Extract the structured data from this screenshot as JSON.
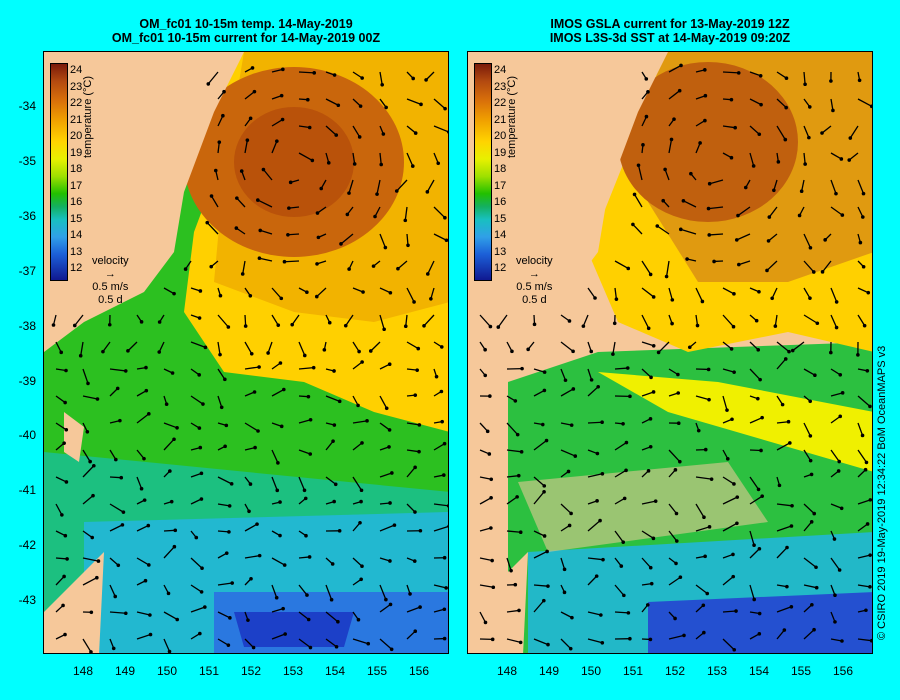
{
  "left_panel": {
    "title_line1": "OM_fc01 10-15m temp. 14-May-2019",
    "title_line2": "OM_fc01 10-15m current for 14-May-2019 00Z"
  },
  "right_panel": {
    "title_line1": "IMOS GSLA current for 13-May-2019 12Z",
    "title_line2": "IMOS L3S-3d SST at 14-May-2019 09:20Z"
  },
  "colorbar": {
    "label": "temperature (°C)",
    "ticks": [
      "24",
      "23",
      "22",
      "21",
      "20",
      "19",
      "18",
      "17",
      "16",
      "15",
      "14",
      "13",
      "12"
    ]
  },
  "velocity_key": {
    "label": "velocity",
    "speed": "0.5 m/s",
    "duration": "0.5 d"
  },
  "y_ticks": [
    "-34",
    "-35",
    "-36",
    "-37",
    "-38",
    "-39",
    "-40",
    "-41",
    "-42",
    "-43"
  ],
  "x_ticks": [
    "148",
    "149",
    "150",
    "151",
    "152",
    "153",
    "154",
    "155",
    "156"
  ],
  "credit": "© CSIRO 2019   19-May-2019 12:34:22 BoM OceanMAPS v3",
  "colors": {
    "background": "#00ffff",
    "land": "#f6c89a"
  }
}
